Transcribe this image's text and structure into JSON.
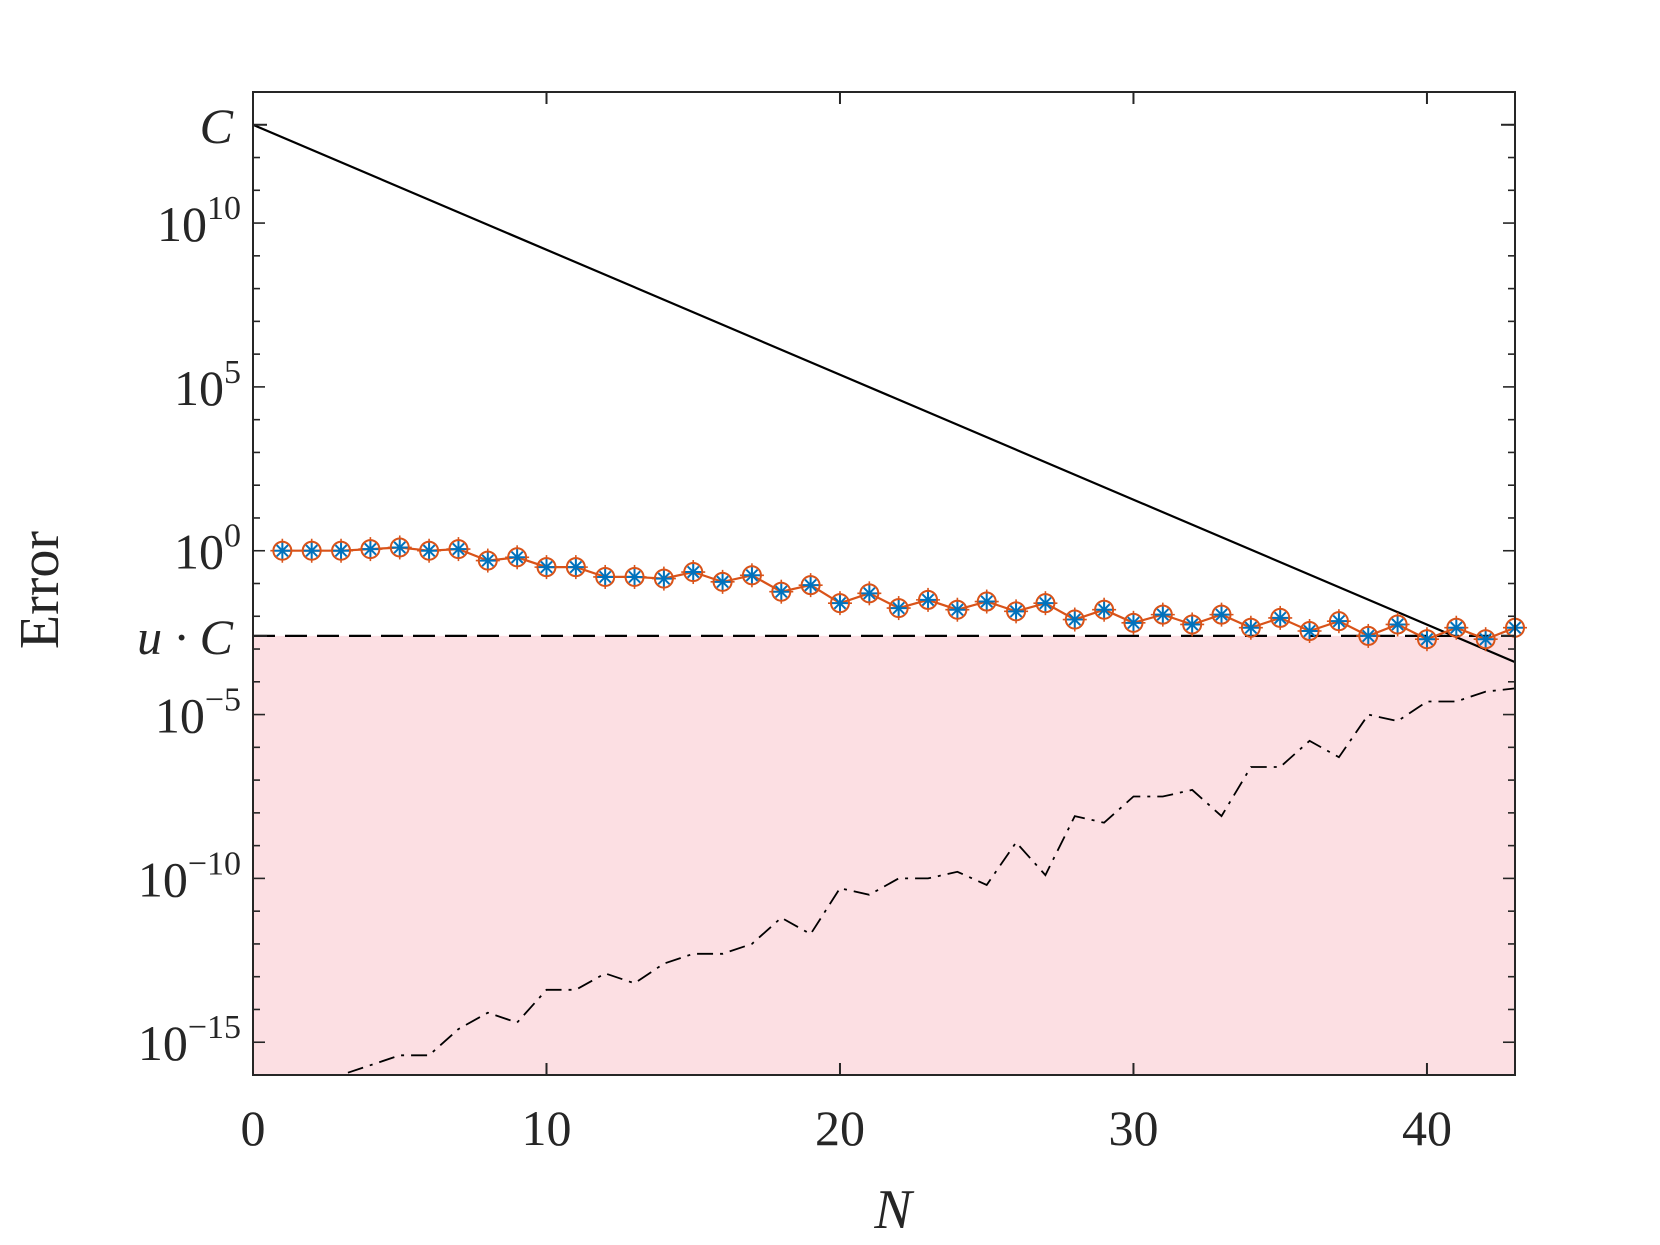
{
  "chart_data": {
    "type": "line",
    "xlabel": "N",
    "ylabel": "Error",
    "x_scale": "linear",
    "y_scale": "log",
    "xlim": [
      0,
      43
    ],
    "ylim_log10": [
      -16,
      14
    ],
    "x_ticks": [
      0,
      10,
      20,
      30,
      40
    ],
    "y_ticks": [
      {
        "base": "10",
        "exp": "10",
        "log10": 10
      },
      {
        "base": "10",
        "exp": "5",
        "log10": 5
      },
      {
        "base": "10",
        "exp": "0",
        "log10": 0
      },
      {
        "base": "10",
        "exp": "−5",
        "log10": -5
      },
      {
        "base": "10",
        "exp": "−10",
        "log10": -10
      },
      {
        "base": "10",
        "exp": "−15",
        "log10": -15
      }
    ],
    "reference_ticks": [
      {
        "label": "C",
        "log10": 13
      },
      {
        "label": "u · C",
        "log10": -2.6
      }
    ],
    "shaded_region": {
      "below_log10": -2.6,
      "color": "#fcdfe3"
    },
    "series": [
      {
        "role": "bound",
        "color": "#000000",
        "style": "solid",
        "x": [
          0,
          43
        ],
        "log10_y": [
          13,
          -3.4
        ]
      },
      {
        "role": "threshold",
        "color": "#000000",
        "style": "dashed",
        "x": [
          0,
          43
        ],
        "log10_y": [
          -2.6,
          -2.6
        ]
      },
      {
        "role": "measured",
        "color": "#d95319",
        "marker_color": "#0072bd",
        "style": "solid-markers",
        "x": [
          1,
          2,
          3,
          4,
          5,
          6,
          7,
          8,
          9,
          10,
          11,
          12,
          13,
          14,
          15,
          16,
          17,
          18,
          19,
          20,
          21,
          22,
          23,
          24,
          25,
          26,
          27,
          28,
          29,
          30,
          31,
          32,
          33,
          34,
          35,
          36,
          37,
          38,
          39,
          40,
          41,
          42,
          43
        ],
        "log10_y": [
          0,
          0,
          0,
          0.05,
          0.1,
          0,
          0.05,
          -0.3,
          -0.2,
          -0.5,
          -0.5,
          -0.8,
          -0.8,
          -0.85,
          -0.65,
          -0.95,
          -0.75,
          -1.25,
          -1.05,
          -1.6,
          -1.3,
          -1.75,
          -1.5,
          -1.8,
          -1.55,
          -1.85,
          -1.6,
          -2.1,
          -1.8,
          -2.2,
          -1.95,
          -2.25,
          -1.95,
          -2.35,
          -2.05,
          -2.45,
          -2.15,
          -2.6,
          -2.25,
          -2.7,
          -2.35,
          -2.7,
          -2.35
        ]
      },
      {
        "role": "lower",
        "color": "#000000",
        "style": "dash-dot",
        "x": [
          1,
          2,
          3,
          4,
          5,
          6,
          7,
          8,
          9,
          10,
          11,
          12,
          13,
          14,
          15,
          16,
          17,
          18,
          19,
          20,
          21,
          22,
          23,
          24,
          25,
          26,
          27,
          28,
          29,
          30,
          31,
          32,
          33,
          34,
          35,
          36,
          37,
          38,
          39,
          40,
          41,
          42,
          43
        ],
        "log10_y": [
          -16,
          -16,
          -16,
          -15.7,
          -15.4,
          -15.4,
          -14.6,
          -14.1,
          -14.4,
          -13.4,
          -13.4,
          -12.9,
          -13.2,
          -12.6,
          -12.3,
          -12.3,
          -12.0,
          -11.2,
          -11.7,
          -10.3,
          -10.5,
          -10.0,
          -10.0,
          -9.8,
          -10.2,
          -8.9,
          -9.9,
          -8.1,
          -8.3,
          -7.5,
          -7.5,
          -7.3,
          -8.1,
          -6.6,
          -6.6,
          -5.8,
          -6.3,
          -5.0,
          -5.2,
          -4.6,
          -4.6,
          -4.3,
          -4.2
        ]
      }
    ]
  }
}
